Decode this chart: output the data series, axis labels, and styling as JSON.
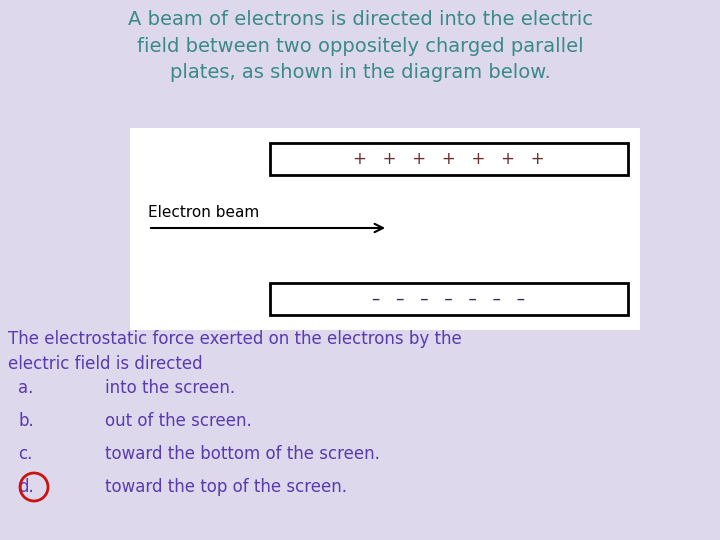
{
  "background_color": "#ddd8ec",
  "title_text": "A beam of electrons is directed into the electric\nfield between two oppositely charged parallel\nplates, as shown in the diagram below.",
  "title_color": "#3a8a8a",
  "title_fontsize": 14,
  "diagram_bg": "#ffffff",
  "pos_plate_label": "+   +   +   +   +   +   +",
  "neg_plate_label": "–   –   –   –   –   –   –",
  "plus_color": "#6b3030",
  "minus_color": "#303060",
  "electron_beam_label": "Electron beam",
  "question_text": "The electrostatic force exerted on the electrons by the\nelectric field is directed",
  "question_color": "#5a3ab0",
  "question_fontsize": 12,
  "options": [
    "into the screen.",
    "out of the screen.",
    "toward the bottom of the screen.",
    "toward the top of the screen."
  ],
  "option_labels": [
    "a.",
    "b.",
    "c.",
    "d."
  ],
  "option_color": "#5a3ab0",
  "option_fontsize": 12,
  "correct_option": 3,
  "circle_color": "#cc1111"
}
